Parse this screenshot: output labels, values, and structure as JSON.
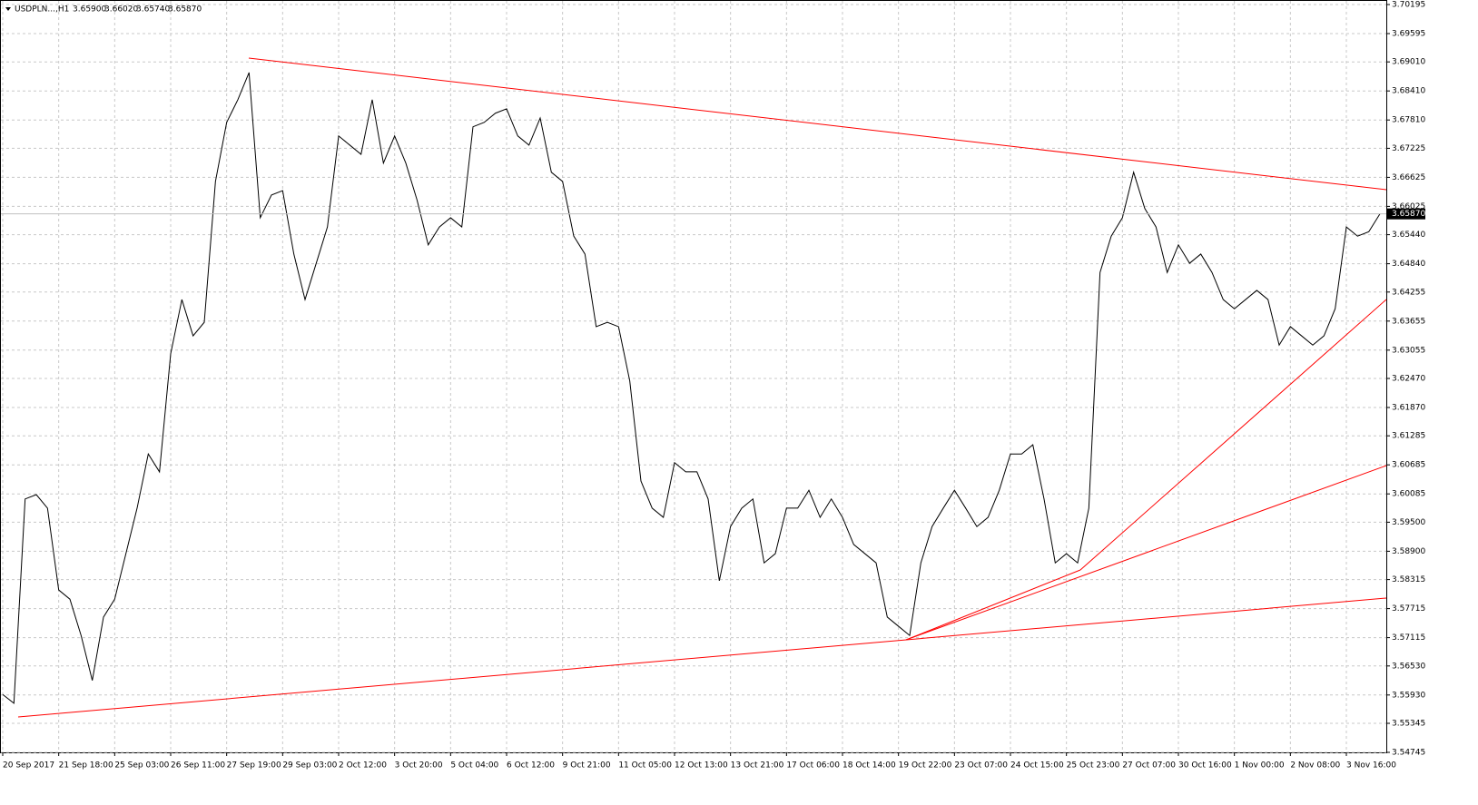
{
  "chart_data": {
    "type": "line",
    "symbol": "USDPLN...,H1",
    "ohlc": [
      "3.65900",
      "3.66020",
      "3.65740",
      "3.65870"
    ],
    "categories": [
      "20 Sep 2017",
      null,
      null,
      null,
      null,
      "21 Sep 18:00",
      null,
      null,
      null,
      null,
      "25 Sep 03:00",
      null,
      null,
      null,
      null,
      "26 Sep 11:00",
      null,
      null,
      null,
      null,
      "27 Sep 19:00",
      null,
      null,
      null,
      null,
      "29 Sep 03:00",
      null,
      null,
      null,
      null,
      "2 Oct 12:00",
      null,
      null,
      null,
      null,
      "3 Oct 20:00",
      null,
      null,
      null,
      null,
      "5 Oct 04:00",
      null,
      null,
      null,
      null,
      "6 Oct 12:00",
      null,
      null,
      null,
      null,
      "9 Oct 21:00",
      null,
      null,
      null,
      null,
      "11 Oct 05:00",
      null,
      null,
      null,
      null,
      "12 Oct 13:00",
      null,
      null,
      null,
      null,
      "13 Oct 21:00",
      null,
      null,
      null,
      null,
      "17 Oct 06:00",
      null,
      null,
      null,
      null,
      "18 Oct 14:00",
      null,
      null,
      null,
      null,
      "19 Oct 22:00",
      null,
      null,
      null,
      null,
      "23 Oct 07:00",
      null,
      null,
      null,
      null,
      "24 Oct 15:00",
      null,
      null,
      null,
      null,
      "25 Oct 23:00",
      null,
      null,
      null,
      null,
      "27 Oct 07:00",
      null,
      null,
      null,
      null,
      "30 Oct 16:00",
      null,
      null,
      null,
      null,
      "1 Nov 00:00",
      null,
      null,
      null,
      null,
      "2 Nov 08:00",
      null,
      null,
      null,
      null,
      "3 Nov 16:00",
      null,
      null,
      null
    ],
    "series": [
      {
        "name": "USDPLN",
        "color": "#000000",
        "values": [
          3.5594,
          3.5576,
          3.5998,
          3.6007,
          3.5979,
          3.581,
          3.5791,
          3.5716,
          3.5623,
          3.5754,
          3.5791,
          3.5885,
          3.5979,
          3.6091,
          3.6054,
          3.6298,
          3.641,
          3.6335,
          3.6363,
          3.6654,
          3.6776,
          3.6823,
          3.6879,
          3.6579,
          3.6626,
          3.6635,
          3.6504,
          3.641,
          3.6485,
          3.656,
          3.6748,
          3.6729,
          3.671,
          3.6823,
          3.6692,
          3.6748,
          3.6692,
          3.6616,
          3.6523,
          3.656,
          3.6579,
          3.656,
          3.6767,
          3.6776,
          3.6795,
          3.6804,
          3.6748,
          3.6729,
          3.6785,
          3.6673,
          3.6654,
          3.6541,
          3.6504,
          3.6354,
          3.6363,
          3.6354,
          3.6242,
          3.6035,
          3.5979,
          3.596,
          3.6073,
          3.6054,
          3.6054,
          3.5998,
          3.5829,
          3.5941,
          3.5979,
          3.5998,
          3.5866,
          3.5885,
          3.5979,
          3.5979,
          3.6016,
          3.596,
          3.5998,
          3.596,
          3.5904,
          3.5885,
          3.5866,
          3.5754,
          3.5735,
          3.5716,
          3.5866,
          3.5941,
          3.5979,
          3.6016,
          3.5979,
          3.5941,
          3.596,
          3.6016,
          3.6091,
          3.6091,
          3.611,
          3.5998,
          3.5866,
          3.5885,
          3.5866,
          3.5979,
          3.6466,
          3.6541,
          3.6579,
          3.6673,
          3.6598,
          3.656,
          3.6466,
          3.6523,
          3.6485,
          3.6504,
          3.6466,
          3.641,
          3.6391,
          3.641,
          3.6429,
          3.641,
          3.6316,
          3.6354,
          3.6335,
          3.6316,
          3.6335,
          3.6391,
          3.656,
          3.6541,
          3.655,
          3.6587
        ]
      }
    ],
    "ylim": [
      3.54745,
      3.70195
    ],
    "yticks": [
      3.70195,
      3.69595,
      {
        "value": 3.6901,
        "label": "3.69010"
      },
      {
        "value": 3.6841,
        "label": "3.68410"
      },
      {
        "value": 3.6781,
        "label": "3.67810"
      },
      3.67225,
      3.66625,
      3.66025,
      {
        "value": 3.6544,
        "label": "3.65440"
      },
      {
        "value": 3.6484,
        "label": "3.64840"
      },
      3.64255,
      3.63655,
      3.63055,
      {
        "value": 3.6247,
        "label": "3.62470"
      },
      {
        "value": 3.6187,
        "label": "3.61870"
      },
      3.61285,
      3.60685,
      3.60085,
      {
        "value": 3.595,
        "label": "3.59500"
      },
      {
        "value": 3.589,
        "label": "3.58900"
      },
      3.58315,
      3.57715,
      3.57115,
      {
        "value": 3.5653,
        "label": "3.56530"
      },
      {
        "value": 3.5593,
        "label": "3.55930"
      },
      3.55345,
      3.54745
    ],
    "bid": {
      "value": 3.6587,
      "label": "3.65870"
    },
    "grid": true
  }
}
